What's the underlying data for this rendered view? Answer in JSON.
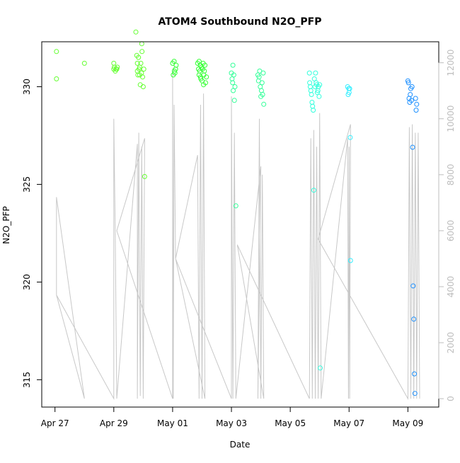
{
  "chart_data": {
    "type": "scatter",
    "title": "ATOM4 Southbound N2O_PFP",
    "xlabel": "Date",
    "ylabel": "N2O_PFP",
    "x_ticks": [
      "Apr 27",
      "Apr 29",
      "May 01",
      "May 03",
      "May 05",
      "May 07",
      "May 09"
    ],
    "x_tick_days": [
      0,
      2,
      4,
      6,
      8,
      10,
      12
    ],
    "xlim_days": [
      -0.45,
      13.05
    ],
    "ylim": [
      313.6,
      332.3
    ],
    "y_ticks": [
      315,
      320,
      325,
      330
    ],
    "right_axis": {
      "label": "",
      "ylim": [
        -300,
        12750
      ],
      "ticks": [
        0,
        2000,
        4000,
        6000,
        8000,
        10000,
        12000
      ],
      "line_color": "#c8c8c8"
    },
    "series": [
      {
        "x": [
          0.05,
          0.05,
          1.0,
          2.0,
          2.0,
          2.02,
          2.05,
          2.08,
          2.1,
          2.12,
          2.75,
          2.78,
          2.8,
          2.8,
          2.82,
          2.84,
          2.86,
          2.88,
          2.88,
          2.9,
          2.92,
          2.94,
          2.95,
          2.96,
          2.98,
          3.0,
          3.02,
          3.05
        ],
        "y": [
          331.8,
          330.4,
          331.2,
          331.2,
          330.9,
          331.0,
          330.8,
          330.9,
          330.9,
          331.0,
          332.8,
          331.6,
          331.2,
          330.8,
          330.6,
          331.5,
          330.9,
          331.0,
          330.6,
          330.1,
          331.2,
          330.7,
          332.2,
          331.8,
          330.5,
          330.0,
          330.9,
          325.4
        ],
        "color": "#66ff33"
      },
      {
        "x": [
          4.0,
          4.02,
          4.05,
          4.06,
          4.08,
          4.1,
          4.12,
          4.85,
          4.88,
          4.9,
          4.9,
          4.92,
          4.94,
          4.95,
          4.96,
          4.98,
          5.0,
          5.02,
          5.04,
          5.05,
          5.06,
          5.08,
          5.1,
          5.12,
          5.15
        ],
        "y": [
          331.2,
          330.6,
          331.3,
          330.8,
          330.7,
          330.9,
          331.1,
          331.2,
          330.9,
          330.6,
          331.3,
          330.8,
          331.1,
          330.5,
          330.4,
          331.0,
          330.3,
          330.9,
          331.2,
          330.1,
          330.6,
          330.8,
          331.1,
          330.2,
          330.5
        ],
        "color": "#33ff33"
      },
      {
        "x": [
          6.0,
          6.02,
          6.04,
          6.05,
          6.06,
          6.08,
          6.1,
          6.12,
          6.15,
          6.9,
          6.92,
          6.94,
          6.96,
          6.98,
          7.0,
          7.02,
          7.04,
          7.06,
          7.08,
          7.1
        ],
        "y": [
          330.7,
          330.4,
          330.2,
          331.1,
          329.8,
          330.6,
          329.3,
          330.0,
          323.9,
          330.6,
          330.3,
          330.5,
          330.8,
          330.0,
          329.5,
          329.8,
          330.2,
          329.6,
          330.7,
          329.1
        ],
        "color": "#33ff99"
      },
      {
        "x": [
          8.65,
          8.66,
          8.68,
          8.7,
          8.72,
          8.74,
          8.76,
          8.78,
          8.8,
          8.82,
          8.84,
          8.86,
          8.88,
          8.9,
          8.92,
          8.94,
          8.96,
          8.98,
          9.0,
          9.02
        ],
        "y": [
          330.7,
          330.2,
          330.0,
          329.8,
          329.6,
          329.2,
          329.0,
          328.8,
          324.7,
          330.4,
          330.0,
          330.7,
          330.2,
          330.1,
          329.7,
          329.8,
          330.0,
          329.5,
          330.1,
          315.6
        ],
        "color": "#33ffdd"
      },
      {
        "x": [
          9.95,
          9.97,
          9.99,
          10.0,
          10.02,
          10.04,
          10.05
        ],
        "y": [
          330.0,
          329.6,
          329.9,
          329.7,
          329.9,
          327.4,
          321.1
        ],
        "color": "#33eeff"
      },
      {
        "x": [
          12.0,
          12.02,
          12.04,
          12.06,
          12.08,
          12.1,
          12.12,
          12.14,
          12.16,
          12.18,
          12.2,
          12.22,
          12.24,
          12.26,
          12.28,
          12.3
        ],
        "y": [
          330.3,
          330.2,
          329.4,
          329.2,
          329.6,
          329.9,
          329.3,
          330.0,
          326.9,
          319.8,
          318.1,
          315.3,
          314.3,
          329.4,
          328.8,
          329.1
        ],
        "color": "#1e90ff"
      }
    ],
    "right_line_series": {
      "x": [
        0.05,
        0.05,
        0.05,
        1.0,
        0.05,
        2.0,
        2.0,
        2.05,
        2.1,
        2.8,
        2.8,
        2.85,
        2.9,
        2.95,
        3.0,
        3.05,
        2.1,
        4.0,
        4.0,
        4.02,
        4.05,
        4.1,
        4.85,
        4.9,
        4.95,
        5.0,
        5.05,
        5.1,
        4.1,
        6.0,
        6.0,
        6.05,
        6.1,
        6.15,
        7.0,
        6.9,
        6.95,
        7.0,
        7.05,
        7.1,
        6.2,
        8.65,
        8.7,
        8.75,
        8.8,
        8.85,
        8.9,
        8.95,
        9.0,
        9.05,
        9.95,
        9.98,
        10.0,
        10.02,
        10.05,
        8.95,
        12.0,
        12.05,
        12.1,
        12.15,
        12.2,
        12.25,
        12.3,
        12.35,
        12.4
      ],
      "y": [
        3700,
        7200,
        7200,
        0,
        3700,
        0,
        10000,
        5800,
        0,
        9100,
        0,
        9500,
        100,
        9000,
        0,
        9300,
        6000,
        0,
        11800,
        0,
        10500,
        5000,
        8700,
        0,
        10500,
        0,
        10900,
        0,
        5000,
        0,
        10800,
        0,
        9500,
        0,
        8300,
        0,
        10000,
        0,
        8000,
        0,
        5500,
        0,
        9300,
        0,
        9600,
        0,
        9000,
        0,
        10200,
        0,
        9300,
        0,
        9000,
        0,
        9800,
        5700,
        0,
        9700,
        0,
        9800,
        0,
        9500,
        0,
        9500,
        0
      ]
    }
  }
}
